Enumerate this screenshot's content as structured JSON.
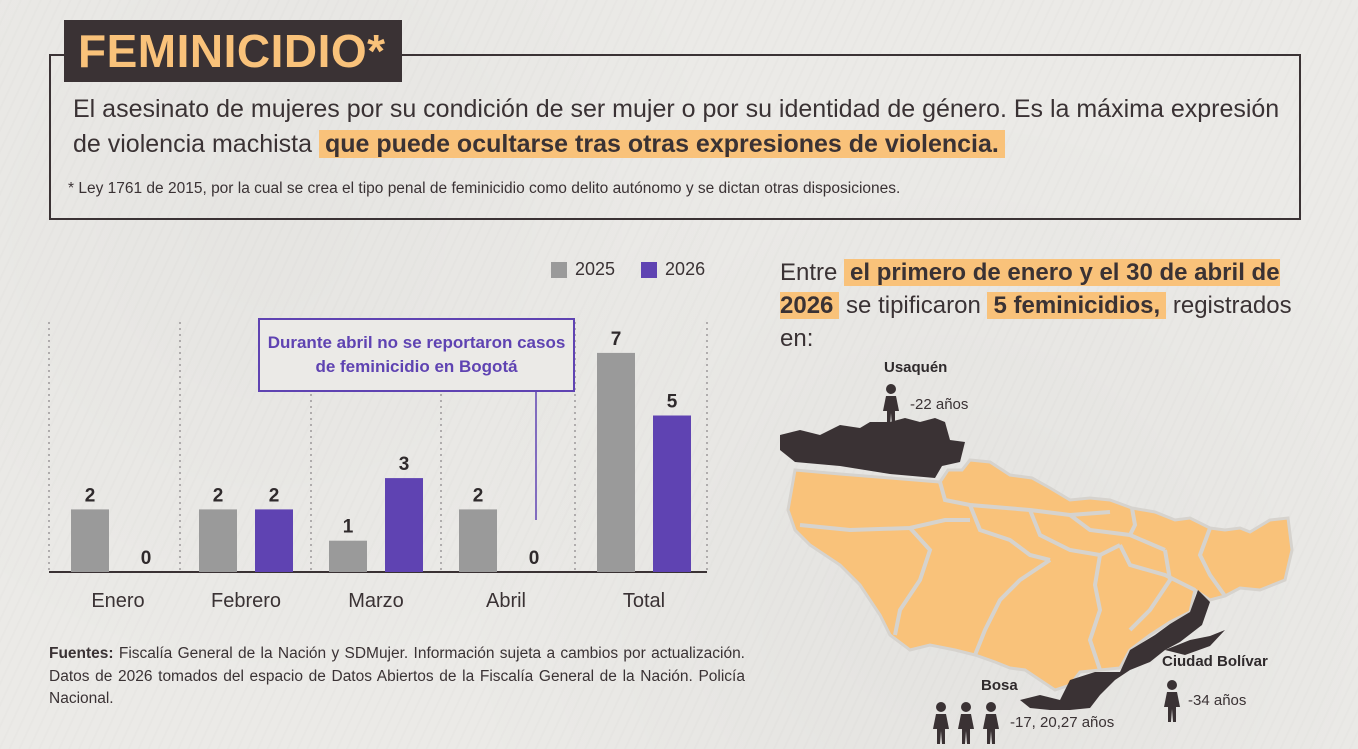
{
  "definition": {
    "title": "FEMINICIDIO*",
    "text_plain": "El asesinato de mujeres por su condición de ser mujer o por su identidad de género. Es la máxima expresión de violencia machista ",
    "text_highlight": "que puede ocultarse tras otras expresiones de violencia.",
    "footnote": "* Ley 1761 de 2015, por la cual se crea el tipo penal de feminicidio como delito autónomo y se dictan otras disposiciones."
  },
  "chart_data": {
    "type": "bar",
    "categories": [
      "Enero",
      "Febrero",
      "Marzo",
      "Abril",
      "Total"
    ],
    "series": [
      {
        "name": "2025",
        "values": [
          2,
          2,
          1,
          2,
          7
        ],
        "color": "#9a9a9a"
      },
      {
        "name": "2026",
        "values": [
          0,
          2,
          3,
          0,
          5
        ],
        "color": "#5f43b2"
      }
    ],
    "ylim": [
      0,
      7
    ],
    "grid": false,
    "legend": "top-right",
    "annotation": "Durante abril no se reportaron casos de feminicidio en Bogotá"
  },
  "stat": {
    "p1": "Entre ",
    "h1": "el primero de enero y el 30 de abril de 2026",
    "p2": " se tipificaron ",
    "h2": "5 feminicidios,",
    "p3": " registrados en:"
  },
  "localities": [
    {
      "name": "Usaquén",
      "ages": "-22 años",
      "count": 1
    },
    {
      "name": "Bosa",
      "ages": "-17, 20,27 años",
      "count": 3
    },
    {
      "name": "Ciudad Bolívar",
      "ages": "-34 años",
      "count": 1
    }
  ],
  "sources": {
    "label": "Fuentes:",
    "text": " Fiscalía General de la Nación y SDMujer.  Información sujeta a cambios por actualización. Datos de 2026 tomados del espacio de Datos Abiertos de la Fiscalía General de la Nación. Policía Nacional."
  },
  "colors": {
    "dark": "#3a3234",
    "accent": "#f9c27a",
    "purple": "#5f43b2",
    "gray": "#9a9a9a"
  }
}
